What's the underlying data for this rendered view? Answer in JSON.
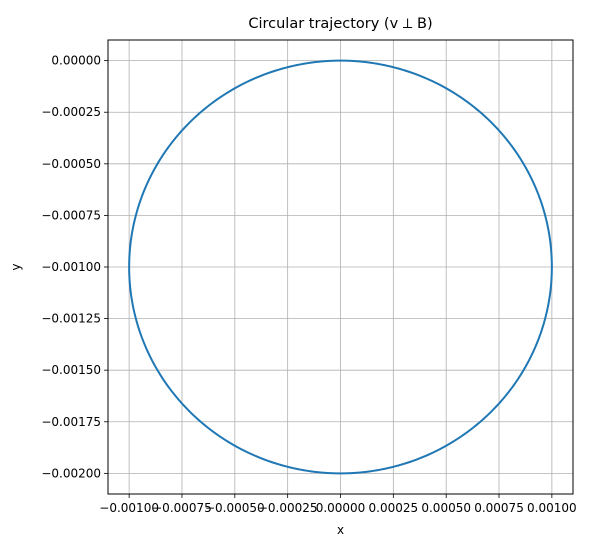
{
  "chart_data": {
    "type": "line",
    "title": "Circular trajectory (v ⟂ B)",
    "xlabel": "x",
    "ylabel": "y",
    "xlim": [
      -0.0011,
      0.0011
    ],
    "ylim": [
      -0.0021,
      0.0001
    ],
    "x_ticks": [
      -0.001,
      -0.00075,
      -0.0005,
      -0.00025,
      0.0,
      0.00025,
      0.0005,
      0.00075,
      0.001
    ],
    "x_tick_labels": [
      "−0.00100",
      "−0.00075",
      "−0.00050",
      "−0.00025",
      "0.00000",
      "0.00025",
      "0.00050",
      "0.00075",
      "0.00100"
    ],
    "y_ticks": [
      0.0,
      -0.00025,
      -0.0005,
      -0.00075,
      -0.001,
      -0.00125,
      -0.0015,
      -0.00175,
      -0.002
    ],
    "y_tick_labels": [
      "0.00000",
      "−0.00025",
      "−0.00050",
      "−0.00075",
      "−0.00100",
      "−0.00125",
      "−0.00150",
      "−0.00175",
      "−0.00200"
    ],
    "grid": true,
    "series": [
      {
        "color": "#1f77b4",
        "shape": "circle",
        "center": [
          0.0,
          -0.001
        ],
        "radius": 0.001
      }
    ]
  }
}
